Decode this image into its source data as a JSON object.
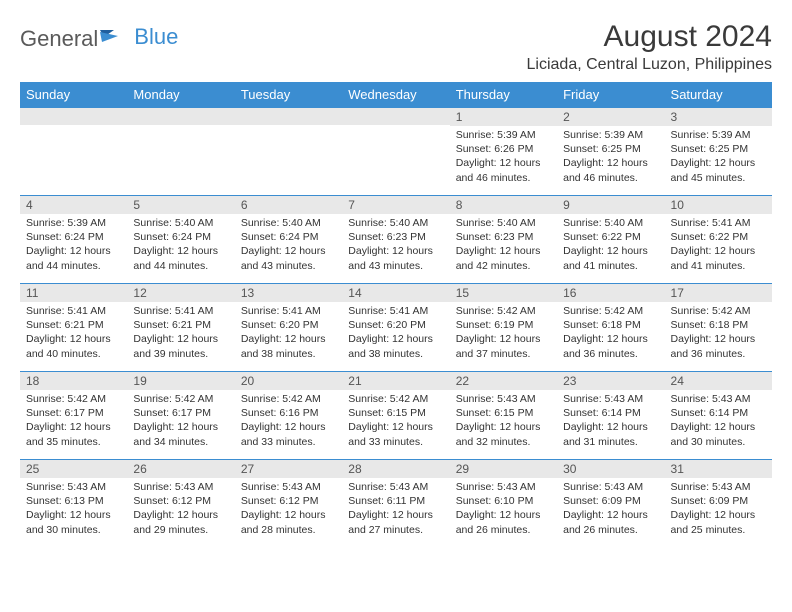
{
  "brand": {
    "general": "General",
    "blue": "Blue"
  },
  "title": "August 2024",
  "location": "Liciada, Central Luzon, Philippines",
  "colors": {
    "header_bg": "#3b8dd1",
    "header_text": "#ffffff",
    "daynum_bg": "#e8e8e8",
    "border": "#3b8dd1",
    "text": "#333333"
  },
  "weekdays": [
    "Sunday",
    "Monday",
    "Tuesday",
    "Wednesday",
    "Thursday",
    "Friday",
    "Saturday"
  ],
  "weeks": [
    [
      {
        "n": "",
        "sr": "",
        "ss": "",
        "dl": ""
      },
      {
        "n": "",
        "sr": "",
        "ss": "",
        "dl": ""
      },
      {
        "n": "",
        "sr": "",
        "ss": "",
        "dl": ""
      },
      {
        "n": "",
        "sr": "",
        "ss": "",
        "dl": ""
      },
      {
        "n": "1",
        "sr": "Sunrise: 5:39 AM",
        "ss": "Sunset: 6:26 PM",
        "dl": "Daylight: 12 hours and 46 minutes."
      },
      {
        "n": "2",
        "sr": "Sunrise: 5:39 AM",
        "ss": "Sunset: 6:25 PM",
        "dl": "Daylight: 12 hours and 46 minutes."
      },
      {
        "n": "3",
        "sr": "Sunrise: 5:39 AM",
        "ss": "Sunset: 6:25 PM",
        "dl": "Daylight: 12 hours and 45 minutes."
      }
    ],
    [
      {
        "n": "4",
        "sr": "Sunrise: 5:39 AM",
        "ss": "Sunset: 6:24 PM",
        "dl": "Daylight: 12 hours and 44 minutes."
      },
      {
        "n": "5",
        "sr": "Sunrise: 5:40 AM",
        "ss": "Sunset: 6:24 PM",
        "dl": "Daylight: 12 hours and 44 minutes."
      },
      {
        "n": "6",
        "sr": "Sunrise: 5:40 AM",
        "ss": "Sunset: 6:24 PM",
        "dl": "Daylight: 12 hours and 43 minutes."
      },
      {
        "n": "7",
        "sr": "Sunrise: 5:40 AM",
        "ss": "Sunset: 6:23 PM",
        "dl": "Daylight: 12 hours and 43 minutes."
      },
      {
        "n": "8",
        "sr": "Sunrise: 5:40 AM",
        "ss": "Sunset: 6:23 PM",
        "dl": "Daylight: 12 hours and 42 minutes."
      },
      {
        "n": "9",
        "sr": "Sunrise: 5:40 AM",
        "ss": "Sunset: 6:22 PM",
        "dl": "Daylight: 12 hours and 41 minutes."
      },
      {
        "n": "10",
        "sr": "Sunrise: 5:41 AM",
        "ss": "Sunset: 6:22 PM",
        "dl": "Daylight: 12 hours and 41 minutes."
      }
    ],
    [
      {
        "n": "11",
        "sr": "Sunrise: 5:41 AM",
        "ss": "Sunset: 6:21 PM",
        "dl": "Daylight: 12 hours and 40 minutes."
      },
      {
        "n": "12",
        "sr": "Sunrise: 5:41 AM",
        "ss": "Sunset: 6:21 PM",
        "dl": "Daylight: 12 hours and 39 minutes."
      },
      {
        "n": "13",
        "sr": "Sunrise: 5:41 AM",
        "ss": "Sunset: 6:20 PM",
        "dl": "Daylight: 12 hours and 38 minutes."
      },
      {
        "n": "14",
        "sr": "Sunrise: 5:41 AM",
        "ss": "Sunset: 6:20 PM",
        "dl": "Daylight: 12 hours and 38 minutes."
      },
      {
        "n": "15",
        "sr": "Sunrise: 5:42 AM",
        "ss": "Sunset: 6:19 PM",
        "dl": "Daylight: 12 hours and 37 minutes."
      },
      {
        "n": "16",
        "sr": "Sunrise: 5:42 AM",
        "ss": "Sunset: 6:18 PM",
        "dl": "Daylight: 12 hours and 36 minutes."
      },
      {
        "n": "17",
        "sr": "Sunrise: 5:42 AM",
        "ss": "Sunset: 6:18 PM",
        "dl": "Daylight: 12 hours and 36 minutes."
      }
    ],
    [
      {
        "n": "18",
        "sr": "Sunrise: 5:42 AM",
        "ss": "Sunset: 6:17 PM",
        "dl": "Daylight: 12 hours and 35 minutes."
      },
      {
        "n": "19",
        "sr": "Sunrise: 5:42 AM",
        "ss": "Sunset: 6:17 PM",
        "dl": "Daylight: 12 hours and 34 minutes."
      },
      {
        "n": "20",
        "sr": "Sunrise: 5:42 AM",
        "ss": "Sunset: 6:16 PM",
        "dl": "Daylight: 12 hours and 33 minutes."
      },
      {
        "n": "21",
        "sr": "Sunrise: 5:42 AM",
        "ss": "Sunset: 6:15 PM",
        "dl": "Daylight: 12 hours and 33 minutes."
      },
      {
        "n": "22",
        "sr": "Sunrise: 5:43 AM",
        "ss": "Sunset: 6:15 PM",
        "dl": "Daylight: 12 hours and 32 minutes."
      },
      {
        "n": "23",
        "sr": "Sunrise: 5:43 AM",
        "ss": "Sunset: 6:14 PM",
        "dl": "Daylight: 12 hours and 31 minutes."
      },
      {
        "n": "24",
        "sr": "Sunrise: 5:43 AM",
        "ss": "Sunset: 6:14 PM",
        "dl": "Daylight: 12 hours and 30 minutes."
      }
    ],
    [
      {
        "n": "25",
        "sr": "Sunrise: 5:43 AM",
        "ss": "Sunset: 6:13 PM",
        "dl": "Daylight: 12 hours and 30 minutes."
      },
      {
        "n": "26",
        "sr": "Sunrise: 5:43 AM",
        "ss": "Sunset: 6:12 PM",
        "dl": "Daylight: 12 hours and 29 minutes."
      },
      {
        "n": "27",
        "sr": "Sunrise: 5:43 AM",
        "ss": "Sunset: 6:12 PM",
        "dl": "Daylight: 12 hours and 28 minutes."
      },
      {
        "n": "28",
        "sr": "Sunrise: 5:43 AM",
        "ss": "Sunset: 6:11 PM",
        "dl": "Daylight: 12 hours and 27 minutes."
      },
      {
        "n": "29",
        "sr": "Sunrise: 5:43 AM",
        "ss": "Sunset: 6:10 PM",
        "dl": "Daylight: 12 hours and 26 minutes."
      },
      {
        "n": "30",
        "sr": "Sunrise: 5:43 AM",
        "ss": "Sunset: 6:09 PM",
        "dl": "Daylight: 12 hours and 26 minutes."
      },
      {
        "n": "31",
        "sr": "Sunrise: 5:43 AM",
        "ss": "Sunset: 6:09 PM",
        "dl": "Daylight: 12 hours and 25 minutes."
      }
    ]
  ]
}
